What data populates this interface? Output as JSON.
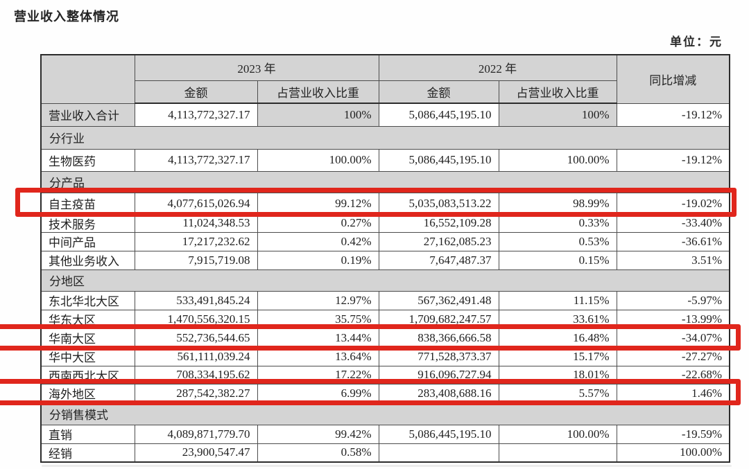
{
  "page": {
    "title": "营业收入整体情况",
    "unit_label": "单位：元"
  },
  "colors": {
    "highlight_red": "#e0261c",
    "header_gray": "#d4d4d4"
  },
  "table": {
    "header": {
      "year_2023": "2023 年",
      "year_2022": "2022 年",
      "amount": "金额",
      "proportion": "占营业收入比重",
      "yoy": "同比增减"
    },
    "rows": [
      {
        "type": "data",
        "variant": "totals",
        "label": "营业收入合计",
        "cells": [
          "4,113,772,327.17",
          "100%",
          "5,086,445,195.10",
          "100%",
          "-19.12%"
        ]
      },
      {
        "type": "section",
        "label": "分行业"
      },
      {
        "type": "data",
        "label": "生物医药",
        "cells": [
          "4,113,772,327.17",
          "100.00%",
          "5,086,445,195.10",
          "100.00%",
          "-19.12%"
        ]
      },
      {
        "type": "section",
        "label": "分产品"
      },
      {
        "type": "data",
        "highlighted": true,
        "label": "自主疫苗",
        "cells": [
          "4,077,615,026.94",
          "99.12%",
          "5,035,083,513.22",
          "98.99%",
          "-19.02%"
        ]
      },
      {
        "type": "data",
        "label": "技术服务",
        "cells": [
          "11,024,348.53",
          "0.27%",
          "16,552,109.28",
          "0.33%",
          "-33.40%"
        ]
      },
      {
        "type": "data",
        "label": "中间产品",
        "cells": [
          "17,217,232.62",
          "0.42%",
          "27,162,085.23",
          "0.53%",
          "-36.61%"
        ]
      },
      {
        "type": "data",
        "label": "其他业务收入",
        "cells": [
          "7,915,719.08",
          "0.19%",
          "7,647,487.37",
          "0.15%",
          "3.51%"
        ]
      },
      {
        "type": "section",
        "label": "分地区"
      },
      {
        "type": "data",
        "label": "东北华北大区",
        "cells": [
          "533,491,845.24",
          "12.97%",
          "567,362,491.48",
          "11.15%",
          "-5.97%"
        ]
      },
      {
        "type": "data",
        "label": "华东大区",
        "cells": [
          "1,470,556,320.15",
          "35.75%",
          "1,709,682,247.57",
          "33.61%",
          "-13.99%"
        ]
      },
      {
        "type": "data",
        "highlighted": true,
        "label": "华南大区",
        "cells": [
          "552,736,544.65",
          "13.44%",
          "838,366,666.58",
          "16.48%",
          "-34.07%"
        ]
      },
      {
        "type": "data",
        "label": "华中大区",
        "cells": [
          "561,111,039.24",
          "13.64%",
          "771,528,373.37",
          "15.17%",
          "-27.27%"
        ]
      },
      {
        "type": "data",
        "label": "西南西北大区",
        "cells": [
          "708,334,195.62",
          "17.22%",
          "916,096,727.94",
          "18.01%",
          "-22.68%"
        ]
      },
      {
        "type": "data",
        "highlighted": true,
        "label": "海外地区",
        "cells": [
          "287,542,382.27",
          "6.99%",
          "283,408,688.16",
          "5.57%",
          "1.46%"
        ]
      },
      {
        "type": "section",
        "label": "分销售模式"
      },
      {
        "type": "data",
        "label": "直销",
        "cells": [
          "4,089,871,779.70",
          "99.42%",
          "5,086,445,195.10",
          "100.00%",
          "-19.59%"
        ]
      },
      {
        "type": "data",
        "label": "经销",
        "cells": [
          "23,900,547.47",
          "0.58%",
          "",
          "",
          "100.00%"
        ]
      }
    ]
  }
}
